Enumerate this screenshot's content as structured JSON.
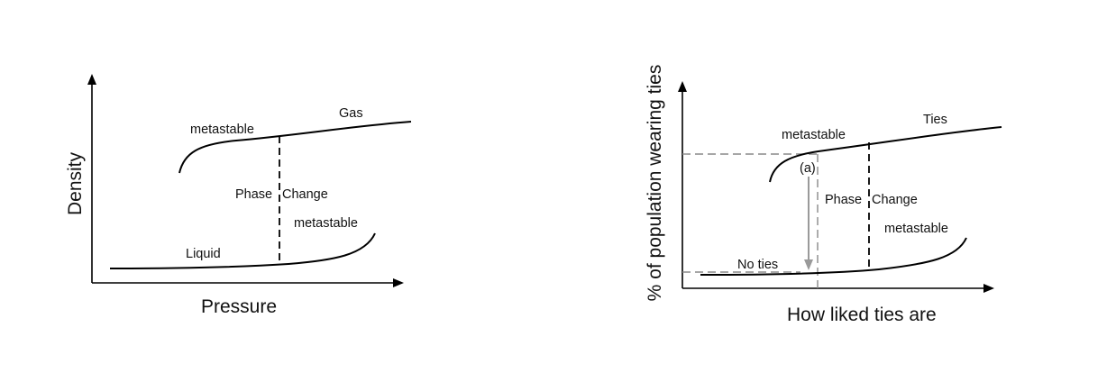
{
  "left_panel": {
    "y_axis_label": "Density",
    "x_axis_label": "Pressure",
    "labels": {
      "gas": "Gas",
      "metastable_upper": "metastable",
      "phase": "Phase",
      "change": "Change",
      "metastable_lower": "metastable",
      "liquid": "Liquid"
    }
  },
  "right_panel": {
    "y_axis_label": "% of population wearing ties",
    "x_axis_label": "How liked ties are",
    "labels": {
      "ties": "Ties",
      "metastable_upper": "metastable",
      "marker_a": "(a)",
      "phase": "Phase",
      "change": "Change",
      "metastable_lower": "metastable",
      "no_ties": "No ties"
    }
  },
  "colors": {
    "curve": "#000000",
    "guide_dashed": "#888888",
    "arrow_gray": "#9a9a9a"
  }
}
